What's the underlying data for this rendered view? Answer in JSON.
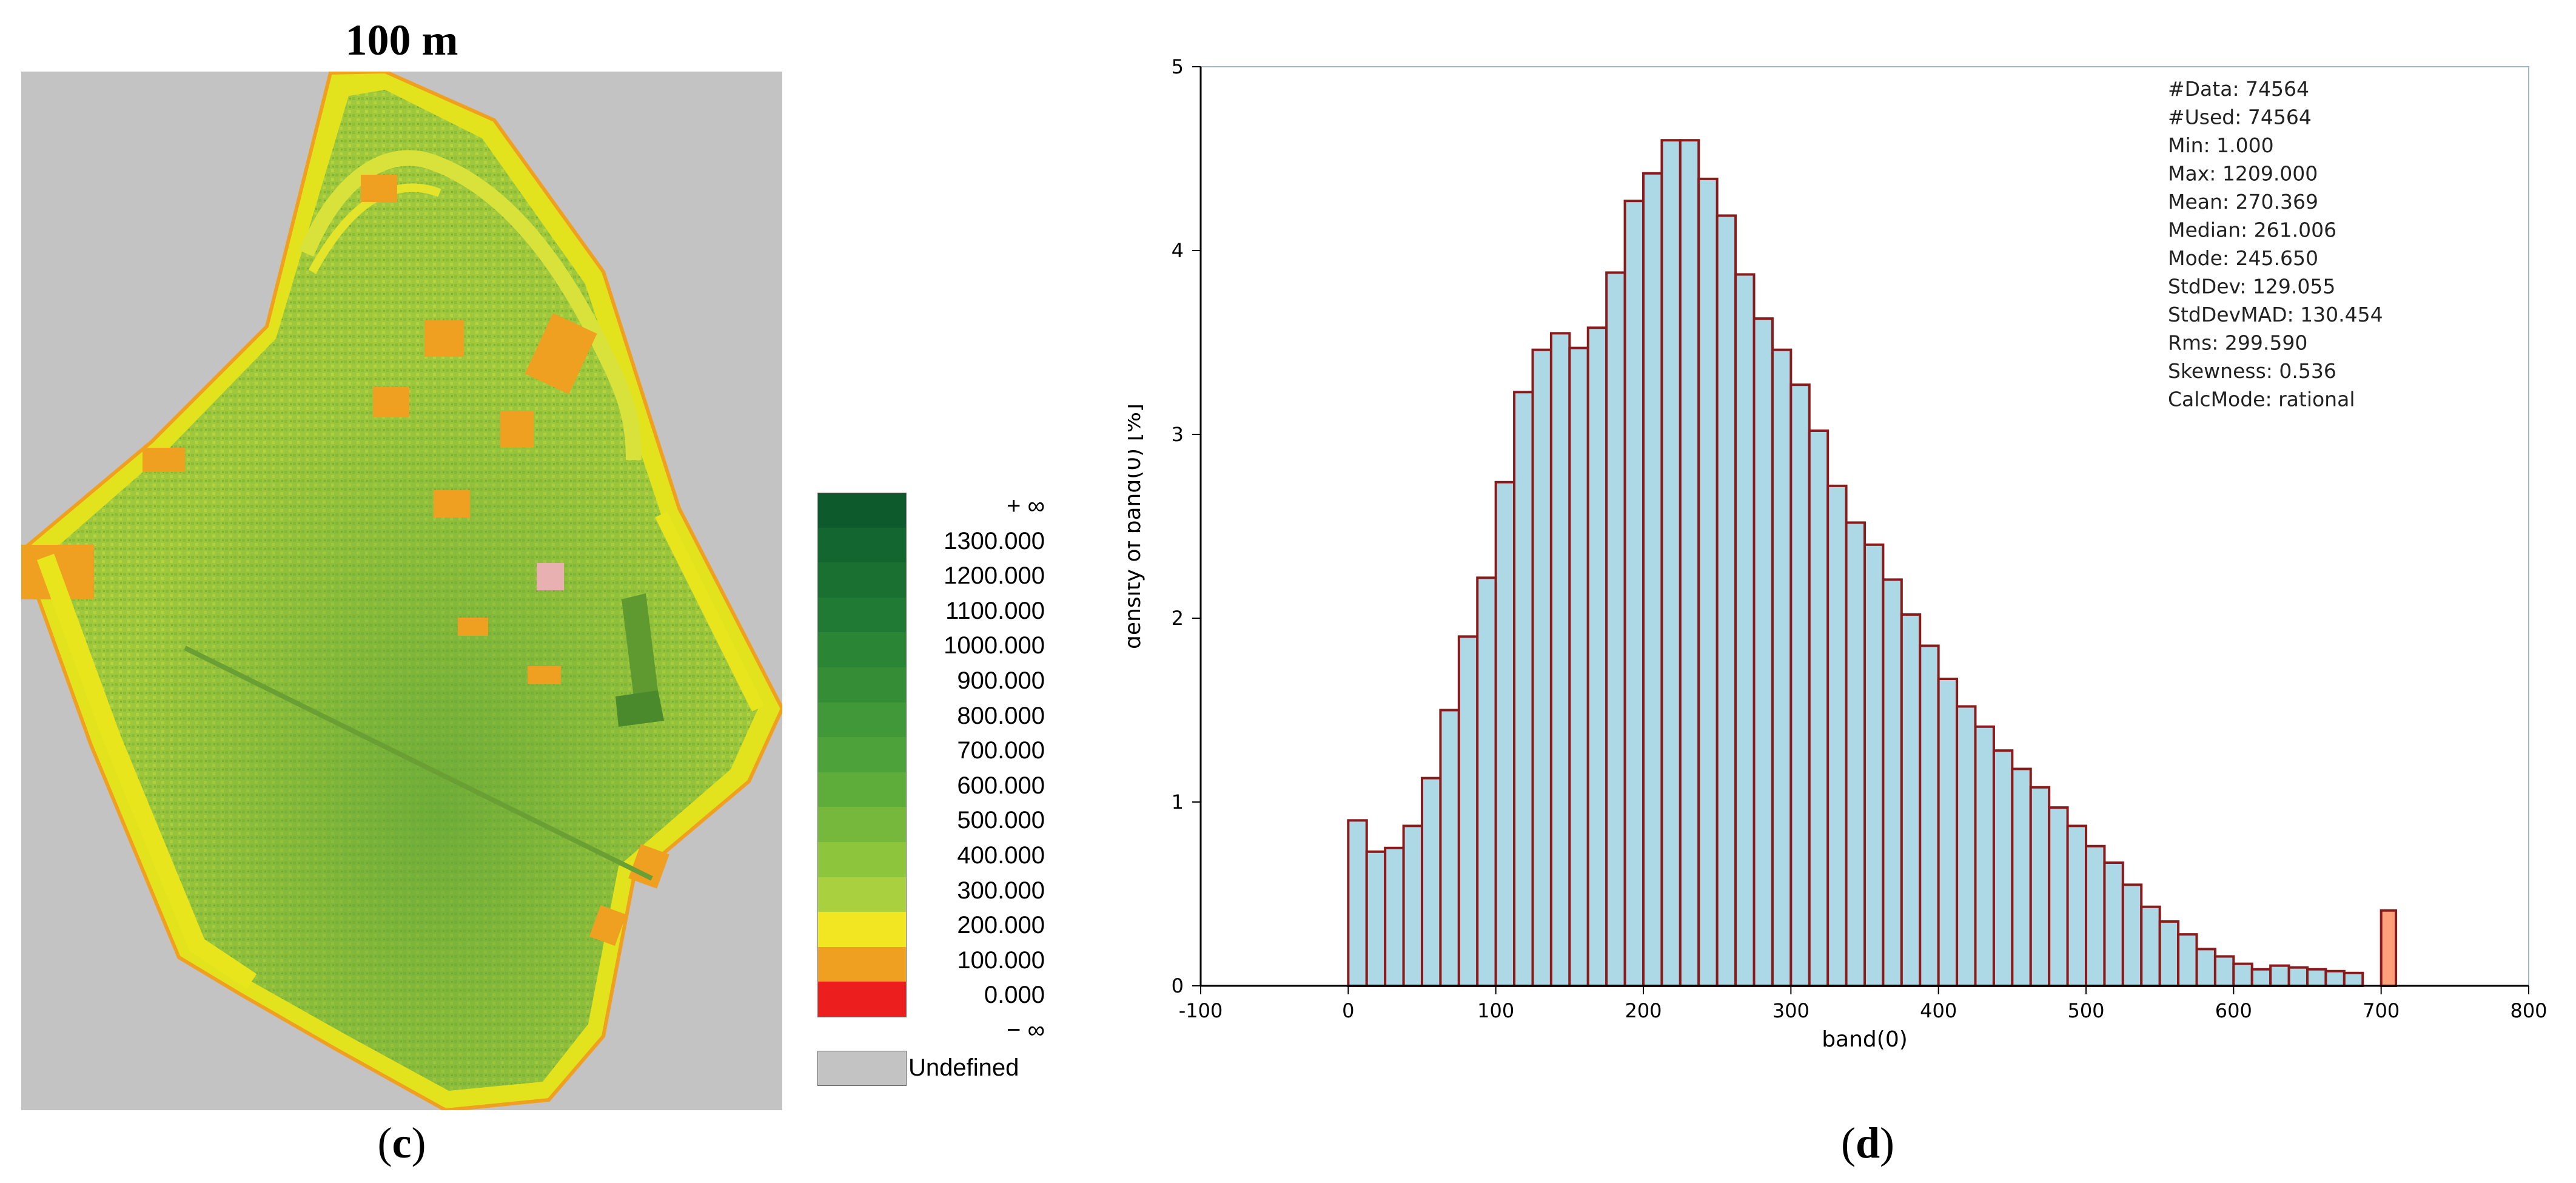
{
  "left_panel": {
    "title": "100 m",
    "label_open": "(",
    "label_letter": "c",
    "label_close": ")",
    "legend": {
      "entries": [
        {
          "label": "+ ∞",
          "color": "#0d5a2c"
        },
        {
          "label": "1300.000",
          "color": "#13662f"
        },
        {
          "label": "1200.000",
          "color": "#1a7031"
        },
        {
          "label": "1100.000",
          "color": "#217a33"
        },
        {
          "label": "1000.000",
          "color": "#2a8534"
        },
        {
          "label": "900.000",
          "color": "#358e36"
        },
        {
          "label": "800.000",
          "color": "#409838"
        },
        {
          "label": "700.000",
          "color": "#4ea23a"
        },
        {
          "label": "600.000",
          "color": "#5ead3a"
        },
        {
          "label": "500.000",
          "color": "#75b83b"
        },
        {
          "label": "400.000",
          "color": "#8dc53d"
        },
        {
          "label": "300.000",
          "color": "#a9d03f"
        },
        {
          "label": "200.000",
          "color": "#f2e522"
        },
        {
          "label": "100.000",
          "color": "#f0a020"
        },
        {
          "label": "0.000",
          "color": "#ec1e1e"
        },
        {
          "label": "− ∞",
          "color": ""
        }
      ],
      "undefined_label": "Undefined"
    }
  },
  "right_panel": {
    "label_open": "(",
    "label_letter": "d",
    "label_close": ")",
    "stats": [
      "#Data: 74564",
      "#Used: 74564",
      "Min: 1.000",
      "Max: 1209.000",
      "Mean: 270.369",
      "Median: 261.006",
      "Mode: 245.650",
      "StdDev: 129.055",
      "StdDevMAD: 130.454",
      "Rms: 299.590",
      "Skewness: 0.536",
      "CalcMode: rational"
    ]
  },
  "chart_data": {
    "type": "bar",
    "xlabel": "band(0)",
    "ylabel": "density of band(0) [%]",
    "xlim": [
      -100,
      800
    ],
    "ylim": [
      0,
      5
    ],
    "xticks": [
      -100,
      0,
      100,
      200,
      300,
      400,
      500,
      600,
      700,
      800
    ],
    "yticks": [
      0,
      1,
      2,
      3,
      4,
      5
    ],
    "bin_width": 12.5,
    "bin_start": 0,
    "values": [
      0.9,
      0.73,
      0.75,
      0.87,
      1.13,
      1.5,
      1.9,
      2.22,
      2.74,
      3.23,
      3.46,
      3.55,
      3.47,
      3.58,
      3.88,
      4.27,
      4.42,
      4.6,
      4.6,
      4.39,
      4.19,
      3.87,
      3.63,
      3.46,
      3.27,
      3.02,
      2.72,
      2.52,
      2.4,
      2.21,
      2.02,
      1.85,
      1.67,
      1.52,
      1.41,
      1.28,
      1.18,
      1.08,
      0.97,
      0.87,
      0.76,
      0.67,
      0.55,
      0.43,
      0.35,
      0.28,
      0.2,
      0.16,
      0.12,
      0.09,
      0.11,
      0.1,
      0.09,
      0.08,
      0.07
    ],
    "overflow_bin": {
      "x": 705,
      "value": 0.41
    },
    "colors": {
      "fill": "#add8e6",
      "edge": "#8b1a1a",
      "overflow_fill": "#ffa07a"
    }
  }
}
